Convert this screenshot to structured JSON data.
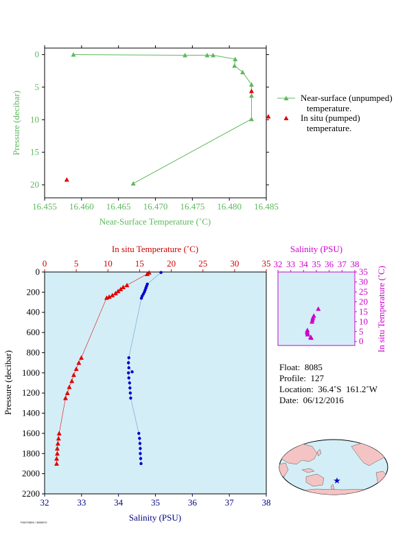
{
  "colors": {
    "green": "#5cb85c",
    "red": "#e00000",
    "darkred": "#cc0000",
    "blue": "#0000cc",
    "magenta": "#cc00cc",
    "navy": "#000080",
    "panel_bg": "#d4eef7",
    "land": "#f4c4c4"
  },
  "chart_data": [
    {
      "type": "line",
      "xlabel": "Near-Surface Temperature (˚C)",
      "ylabel": "Pressure (decibar)",
      "xlim": [
        16.455,
        16.485
      ],
      "ylim": [
        22,
        -1
      ],
      "xticks": [
        "16.455",
        "16.460",
        "16.465",
        "16.470",
        "16.475",
        "16.480",
        "16.485"
      ],
      "yticks": [
        "0",
        "5",
        "10",
        "15",
        "20"
      ],
      "legend": [
        {
          "line1": "Near-surface (unpumped)",
          "line2": "temperature."
        },
        {
          "line1": "In situ (pumped)",
          "line2": "temperature."
        }
      ],
      "series": [
        {
          "name": "Near-surface (unpumped) temperature.",
          "points": [
            [
              16.4589,
              0.0
            ],
            [
              16.474,
              0.1
            ],
            [
              16.477,
              0.1
            ],
            [
              16.4778,
              0.1
            ],
            [
              16.4808,
              0.7
            ],
            [
              16.4807,
              1.7
            ],
            [
              16.4818,
              2.7
            ],
            [
              16.483,
              4.6
            ],
            [
              16.483,
              6.3
            ],
            [
              16.483,
              9.9
            ],
            [
              16.467,
              19.8
            ]
          ]
        },
        {
          "name": "In situ (pumped) temperature.",
          "points": [
            [
              16.483,
              5.6
            ],
            [
              16.4853,
              9.5
            ],
            [
              16.458,
              19.2
            ]
          ]
        }
      ]
    },
    {
      "type": "scatter",
      "top_xlabel": "In situ Temperature (˚C)",
      "bottom_xlabel": "Salinity (PSU)",
      "ylabel": "Pressure (decibar)",
      "temp_lim": [
        0,
        35
      ],
      "sal_lim": [
        32,
        38
      ],
      "ylim": [
        2200,
        0
      ],
      "temp_ticks": [
        "0",
        "5",
        "10",
        "15",
        "20",
        "25",
        "30",
        "35"
      ],
      "sal_ticks": [
        "32",
        "33",
        "34",
        "35",
        "36",
        "37",
        "38"
      ],
      "yticks": [
        "0",
        "200",
        "400",
        "600",
        "800",
        "1000",
        "1200",
        "1400",
        "1600",
        "1800",
        "2000",
        "2200"
      ],
      "temperature": [
        [
          16.5,
          5
        ],
        [
          16.2,
          20
        ],
        [
          13.0,
          130
        ],
        [
          12.4,
          150
        ],
        [
          12.0,
          170
        ],
        [
          11.6,
          190
        ],
        [
          11.2,
          210
        ],
        [
          10.7,
          230
        ],
        [
          10.2,
          245
        ],
        [
          9.8,
          255
        ],
        [
          5.8,
          850
        ],
        [
          5.4,
          900
        ],
        [
          5.0,
          960
        ],
        [
          4.6,
          1020
        ],
        [
          4.3,
          1080
        ],
        [
          3.9,
          1140
        ],
        [
          3.6,
          1200
        ],
        [
          3.3,
          1250
        ],
        [
          2.3,
          1600
        ],
        [
          2.2,
          1650
        ],
        [
          2.1,
          1700
        ],
        [
          2.0,
          1750
        ],
        [
          2.0,
          1800
        ],
        [
          1.9,
          1850
        ],
        [
          1.9,
          1900
        ]
      ],
      "salinity": [
        [
          35.15,
          5
        ],
        [
          34.78,
          120
        ],
        [
          34.76,
          140
        ],
        [
          34.74,
          160
        ],
        [
          34.72,
          180
        ],
        [
          34.7,
          200
        ],
        [
          34.67,
          220
        ],
        [
          34.64,
          240
        ],
        [
          34.62,
          260
        ],
        [
          34.28,
          850
        ],
        [
          34.27,
          900
        ],
        [
          34.28,
          950
        ],
        [
          34.37,
          990
        ],
        [
          34.27,
          1000
        ],
        [
          34.28,
          1050
        ],
        [
          34.3,
          1100
        ],
        [
          34.31,
          1150
        ],
        [
          34.32,
          1200
        ],
        [
          34.33,
          1250
        ],
        [
          34.55,
          1600
        ],
        [
          34.57,
          1650
        ],
        [
          34.58,
          1700
        ],
        [
          34.59,
          1750
        ],
        [
          34.59,
          1800
        ],
        [
          34.6,
          1850
        ],
        [
          34.61,
          1900
        ]
      ]
    },
    {
      "type": "scatter",
      "title": "Salinity (PSU)",
      "ylabel": "In situ Temperature (˚C)",
      "xlim": [
        32,
        38
      ],
      "ylim": [
        -2,
        35
      ],
      "xticks": [
        "32",
        "33",
        "34",
        "35",
        "36",
        "37",
        "38"
      ],
      "yticks": [
        "0",
        "5",
        "10",
        "15",
        "20",
        "25",
        "30",
        "35"
      ],
      "points": [
        [
          35.15,
          16.5
        ],
        [
          34.8,
          13.0
        ],
        [
          34.73,
          12.0
        ],
        [
          34.7,
          11.0
        ],
        [
          34.66,
          10.0
        ],
        [
          34.3,
          5.8
        ],
        [
          34.28,
          5.0
        ],
        [
          34.3,
          4.3
        ],
        [
          34.32,
          3.6
        ],
        [
          34.55,
          2.3
        ],
        [
          34.58,
          2.1
        ],
        [
          34.6,
          1.9
        ]
      ]
    }
  ],
  "info": {
    "float_label": "Float:",
    "float_value": "8085",
    "profile_label": "Profile:",
    "profile_value": "127",
    "location_label": "Location:",
    "location_value": "36.4˚S  161.2˚W",
    "date_label": "Date:",
    "date_value": "06/12/2016"
  },
  "map": {
    "marker_icon": "star-icon"
  },
  "footer": {
    "small_text": "FW070809 / 3085070"
  }
}
